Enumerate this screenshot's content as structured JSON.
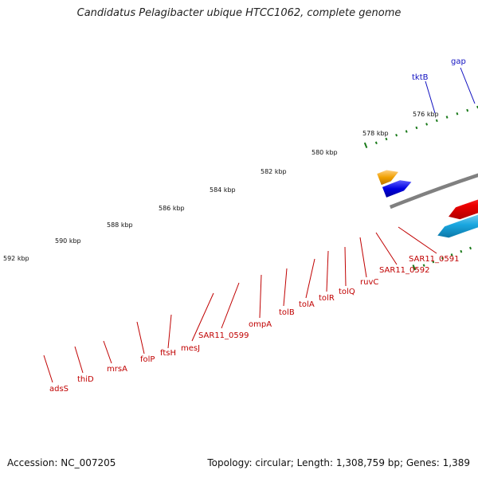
{
  "title": "Candidatus Pelagibacter ubique HTCC1062, complete genome",
  "footer": {
    "accession": "Accession: NC_007205",
    "summary": "Topology: circular; Length: 1,308,759 bp; Genes: 1,389"
  },
  "colors": {
    "backbone": "#808080",
    "tick": "#1a7a1a",
    "label_fwd": "#1010c0",
    "label_rev": "#c00000",
    "callout_fwd": "#1010c0",
    "callout_rev": "#c00000"
  },
  "scale_labels": [
    {
      "kbp": 592,
      "text": "592 kbp"
    },
    {
      "kbp": 590,
      "text": "590 kbp"
    },
    {
      "kbp": 588,
      "text": "588 kbp"
    },
    {
      "kbp": 586,
      "text": "586 kbp"
    },
    {
      "kbp": 584,
      "text": "584 kbp"
    },
    {
      "kbp": 582,
      "text": "582 kbp"
    },
    {
      "kbp": 580,
      "text": "580 kbp"
    },
    {
      "kbp": 578,
      "text": "578 kbp"
    },
    {
      "kbp": 576,
      "text": "576 kbp"
    }
  ],
  "genes_forward": [
    {
      "name": "tktB",
      "start_kbp": 575.4,
      "end_kbp": 577.2,
      "color": "#2ec4c8"
    },
    {
      "name": "gap",
      "start_kbp": 574.2,
      "end_kbp": 575.4,
      "color": "#2ec4c8"
    }
  ],
  "labels_forward": [
    {
      "text": "tktB",
      "gene": "tktB"
    },
    {
      "text": "gap",
      "gene": "gap"
    }
  ],
  "labels_reverse": [
    {
      "text": "adsS"
    },
    {
      "text": "thiD"
    },
    {
      "text": "mrsA"
    },
    {
      "text": "folP"
    },
    {
      "text": "ftsH"
    },
    {
      "text": "mesJ"
    },
    {
      "text": "SAR11_0599"
    },
    {
      "text": "ompA"
    },
    {
      "text": "tolB"
    },
    {
      "text": "tolA"
    },
    {
      "text": "tolR"
    },
    {
      "text": "tolQ"
    },
    {
      "text": "ruvC"
    },
    {
      "text": "SAR11_0592"
    },
    {
      "text": "SAR11_0591"
    }
  ]
}
